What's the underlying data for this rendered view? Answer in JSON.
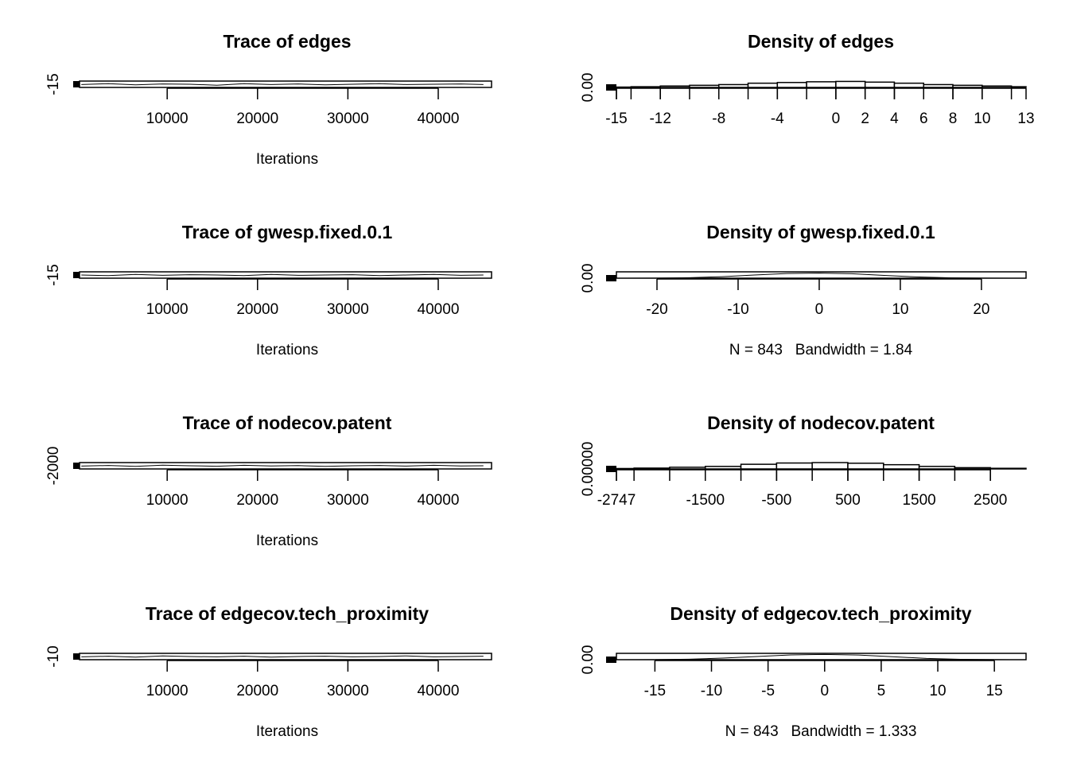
{
  "chart_data": [
    {
      "type": "line",
      "title": "Trace of edges",
      "xlabel": "Iterations",
      "x": [
        500,
        3500,
        6500,
        9500,
        12500,
        15500,
        18500,
        21500,
        24500,
        27500,
        30500,
        33500,
        36500,
        39500,
        42500,
        45000
      ],
      "values": [
        -15.1,
        -14.8,
        -15.2,
        -14.9,
        -15.0,
        -15.3,
        -14.8,
        -15.1,
        -14.9,
        -15.2,
        -15.0,
        -14.8,
        -15.1,
        -15.0,
        -14.9,
        -15.1
      ],
      "color": "#000000",
      "xlim": [
        300,
        45900
      ],
      "xticks": [
        10000,
        20000,
        30000,
        40000
      ],
      "ylim": [
        -16,
        -14
      ],
      "yticks": [
        -15
      ]
    },
    {
      "type": "histogram",
      "title": "Density of edges",
      "bins": [
        -15,
        -14,
        -12,
        -10,
        -8,
        -6,
        -4,
        -2,
        0,
        2,
        4,
        6,
        8,
        10,
        12,
        13
      ],
      "values": [
        0.005,
        0.01,
        0.02,
        0.03,
        0.04,
        0.06,
        0.07,
        0.08,
        0.085,
        0.075,
        0.06,
        0.04,
        0.03,
        0.02,
        0.01
      ],
      "color": "#ffffff",
      "xlim": [
        -15,
        13
      ],
      "xticks": [
        -15,
        -12,
        -8,
        -4,
        0,
        2,
        4,
        6,
        8,
        10,
        13
      ],
      "ylim": [
        0,
        0.09
      ],
      "yticks": [
        {
          "value": 0,
          "label": "0.00"
        }
      ]
    },
    {
      "type": "line",
      "title": "Trace of gwesp.fixed.0.1",
      "xlabel": "Iterations",
      "x": [
        500,
        3500,
        6500,
        9500,
        12500,
        15500,
        18500,
        21500,
        24500,
        27500,
        30500,
        33500,
        36500,
        39500,
        42500,
        45000
      ],
      "values": [
        -15.0,
        -15.2,
        -14.8,
        -15.1,
        -14.9,
        -15.0,
        -15.2,
        -14.8,
        -15.1,
        -15.0,
        -14.9,
        -15.2,
        -15.0,
        -14.8,
        -15.1,
        -15.0
      ],
      "color": "#000000",
      "xlim": [
        300,
        45900
      ],
      "xticks": [
        10000,
        20000,
        30000,
        40000
      ],
      "ylim": [
        -16,
        -14
      ],
      "yticks": [
        -15
      ]
    },
    {
      "type": "density",
      "title": "Density of gwesp.fixed.0.1",
      "xlabel": "N = 843   Bandwidth = 1.84",
      "x": [
        -24,
        -20,
        -16,
        -12,
        -8,
        -4,
        0,
        4,
        8,
        12,
        16,
        20,
        24
      ],
      "values": [
        0,
        0.001,
        0.004,
        0.012,
        0.025,
        0.037,
        0.04,
        0.035,
        0.022,
        0.01,
        0.003,
        0.001,
        0
      ],
      "color": "#000000",
      "xlim": [
        -25,
        25.5
      ],
      "xticks": [
        -20,
        -10,
        0,
        10,
        20
      ],
      "ylim": [
        0,
        0.05
      ],
      "yticks": [
        {
          "value": 0,
          "label": "0.00"
        }
      ]
    },
    {
      "type": "line",
      "title": "Trace of nodecov.patent",
      "xlabel": "Iterations",
      "x": [
        500,
        3500,
        6500,
        9500,
        12500,
        15500,
        18500,
        21500,
        24500,
        27500,
        30500,
        33500,
        36500,
        39500,
        42500,
        45000
      ],
      "values": [
        -2010,
        -1990,
        -2020,
        -1980,
        -2000,
        -2015,
        -1985,
        -2005,
        -1995,
        -2020,
        -2000,
        -1990,
        -2010,
        -1985,
        -2005,
        -2000
      ],
      "color": "#000000",
      "xlim": [
        300,
        45900
      ],
      "xticks": [
        10000,
        20000,
        30000,
        40000
      ],
      "ylim": [
        -2100,
        -1900
      ],
      "yticks": [
        -2000
      ]
    },
    {
      "type": "histogram",
      "title": "Density of nodecov.patent",
      "bins": [
        -2747,
        -2500,
        -2000,
        -1500,
        -1000,
        -500,
        0,
        500,
        1000,
        1500,
        2000,
        2500,
        3000
      ],
      "values": [
        2e-05,
        4e-05,
        8e-05,
        0.00012,
        0.00022,
        0.00028,
        0.0003,
        0.00027,
        0.0002,
        0.00012,
        6e-05,
        3e-05
      ],
      "color": "#ffffff",
      "xlim": [
        -2747,
        3000
      ],
      "xticks": [
        -2747,
        -1500,
        -500,
        500,
        1500,
        2500
      ],
      "ylim": [
        0,
        0.0003
      ],
      "yticks": [
        {
          "value": 0,
          "label": "0.00000"
        }
      ]
    },
    {
      "type": "line",
      "title": "Trace of edgecov.tech_proximity",
      "xlabel": "Iterations",
      "x": [
        500,
        3500,
        6500,
        9500,
        12500,
        15500,
        18500,
        21500,
        24500,
        27500,
        30500,
        33500,
        36500,
        39500,
        42500,
        45000
      ],
      "values": [
        -10.1,
        -9.9,
        -10.2,
        -9.8,
        -10.0,
        -10.1,
        -9.9,
        -10.2,
        -10.0,
        -9.9,
        -10.1,
        -10.0,
        -9.8,
        -10.1,
        -10.0,
        -9.9
      ],
      "color": "#000000",
      "xlim": [
        300,
        45900
      ],
      "xticks": [
        10000,
        20000,
        30000,
        40000
      ],
      "ylim": [
        -11,
        -9
      ],
      "yticks": [
        -10
      ]
    },
    {
      "type": "density",
      "title": "Density of edgecov.tech_proximity",
      "xlabel": "N = 843   Bandwidth = 1.333",
      "x": [
        -18,
        -15,
        -12,
        -9,
        -6,
        -3,
        0,
        3,
        6,
        9,
        12,
        15,
        17
      ],
      "values": [
        0,
        0.001,
        0.005,
        0.015,
        0.03,
        0.045,
        0.05,
        0.044,
        0.028,
        0.012,
        0.004,
        0.001,
        0
      ],
      "color": "#000000",
      "xlim": [
        -18.4,
        17.8
      ],
      "xticks": [
        -15,
        -10,
        -5,
        0,
        5,
        10,
        15
      ],
      "ylim": [
        0,
        0.06
      ],
      "yticks": [
        {
          "value": 0,
          "label": "0.00"
        }
      ]
    }
  ]
}
